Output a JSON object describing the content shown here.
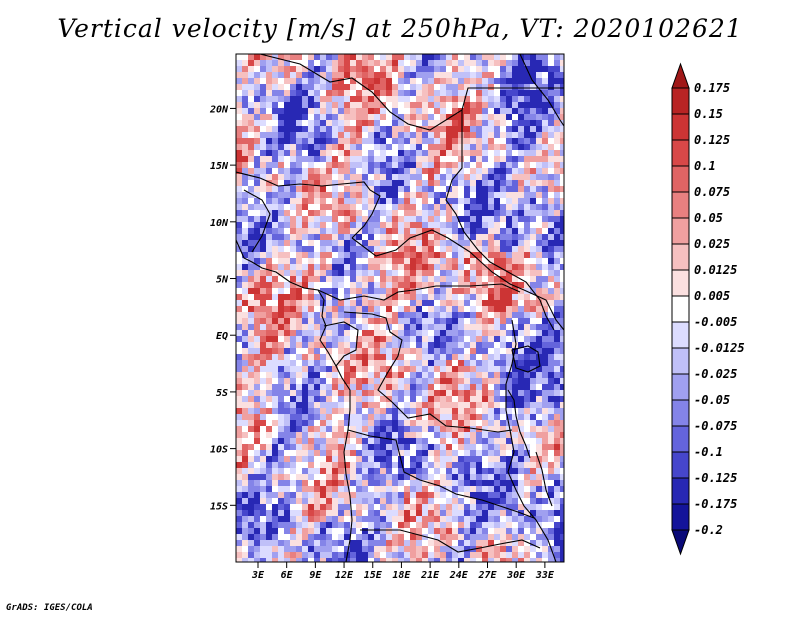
{
  "title": "Vertical velocity [m/s] at 250hPa, VT: 2020102621",
  "credit": "GrADS: IGES/COLA",
  "map": {
    "lat_labels": [
      "20N",
      "15N",
      "10N",
      "5N",
      "EQ",
      "5S",
      "10S",
      "15S"
    ],
    "lat_values": [
      20,
      15,
      10,
      5,
      0,
      -5,
      -10,
      -15
    ],
    "lon_labels": [
      "3E",
      "6E",
      "9E",
      "12E",
      "15E",
      "18E",
      "21E",
      "24E",
      "27E",
      "30E",
      "33E"
    ],
    "lon_values": [
      3,
      6,
      9,
      12,
      15,
      18,
      21,
      24,
      27,
      30,
      33
    ],
    "lat_range": [
      -20,
      24.8
    ],
    "lon_range": [
      0.7,
      35
    ]
  },
  "colorbar": {
    "labels": [
      "0.175",
      "0.15",
      "0.125",
      "0.1",
      "0.075",
      "0.05",
      "0.025",
      "0.0125",
      "0.005",
      "-0.005",
      "-0.0125",
      "-0.025",
      "-0.05",
      "-0.075",
      "-0.1",
      "-0.125",
      "-0.175",
      "-0.2"
    ],
    "colors": [
      "#a01818",
      "#b82424",
      "#cc3434",
      "#d84848",
      "#e06464",
      "#e88080",
      "#f0a0a0",
      "#f6c0c0",
      "#fbe0e0",
      "#ffffff",
      "#dcdcff",
      "#c0c0f8",
      "#a0a0f0",
      "#8484e8",
      "#6464dc",
      "#4646cc",
      "#2828b4",
      "#14149a",
      "#0a0a78"
    ]
  }
}
